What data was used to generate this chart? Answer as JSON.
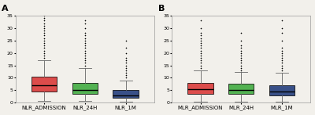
{
  "panel_A": {
    "label": "A",
    "xlabel_labels": [
      "NLR_ADMISSION",
      "NLR_24H",
      "NLR_1M"
    ],
    "colors": [
      "#D93535",
      "#3DAA3D",
      "#1F3A7A"
    ],
    "ylim": [
      0,
      35
    ],
    "yticks": [
      0,
      5,
      10,
      15,
      20,
      25,
      30,
      35
    ],
    "stats": [
      {
        "med": 7.0,
        "q1": 4.5,
        "q3": 10.5,
        "whislo": 0.8,
        "whishi": 17.0,
        "fliers": [
          18,
          19,
          20,
          21,
          22,
          23,
          24,
          25,
          26,
          27,
          28,
          29,
          30,
          31,
          32,
          33,
          34,
          35
        ]
      },
      {
        "med": 5.0,
        "q1": 3.5,
        "q3": 8.0,
        "whislo": 0.6,
        "whishi": 14.0,
        "fliers": [
          15,
          16,
          17,
          18,
          19,
          20,
          21,
          22,
          23,
          24,
          25,
          26,
          27,
          28,
          30,
          32,
          33
        ]
      },
      {
        "med": 3.0,
        "q1": 2.0,
        "q3": 5.0,
        "whislo": 0.3,
        "whishi": 9.0,
        "fliers": [
          10,
          11,
          12,
          13,
          14,
          15,
          16,
          17,
          18,
          20,
          22,
          25
        ]
      }
    ]
  },
  "panel_B": {
    "label": "B",
    "xlabel_labels": [
      "MLR_ADMISSION",
      "MLR_24H",
      "MLR_1M"
    ],
    "colors": [
      "#D93535",
      "#3DAA3D",
      "#1F3A7A"
    ],
    "ylim": [
      0,
      35
    ],
    "yticks": [
      0,
      5,
      10,
      15,
      20,
      25,
      30,
      35
    ],
    "stats": [
      {
        "med": 5.5,
        "q1": 3.5,
        "q3": 8.0,
        "whislo": 0.3,
        "whishi": 13.0,
        "fliers": [
          14,
          15,
          16,
          17,
          18,
          19,
          20,
          21,
          22,
          23,
          24,
          25,
          26,
          27,
          28,
          30,
          33
        ]
      },
      {
        "med": 5.0,
        "q1": 3.5,
        "q3": 7.5,
        "whislo": 0.3,
        "whishi": 12.5,
        "fliers": [
          13,
          14,
          15,
          16,
          17,
          18,
          19,
          20,
          21,
          22,
          23,
          25,
          28
        ]
      },
      {
        "med": 4.5,
        "q1": 3.0,
        "q3": 7.0,
        "whislo": 0.3,
        "whishi": 12.0,
        "fliers": [
          13,
          14,
          15,
          16,
          17,
          18,
          19,
          20,
          21,
          22,
          25,
          28,
          30,
          33
        ]
      }
    ]
  },
  "bg_color": "#F2F0EB",
  "label_fontsize": 5,
  "tick_fontsize": 4.5,
  "panel_label_fontsize": 8
}
